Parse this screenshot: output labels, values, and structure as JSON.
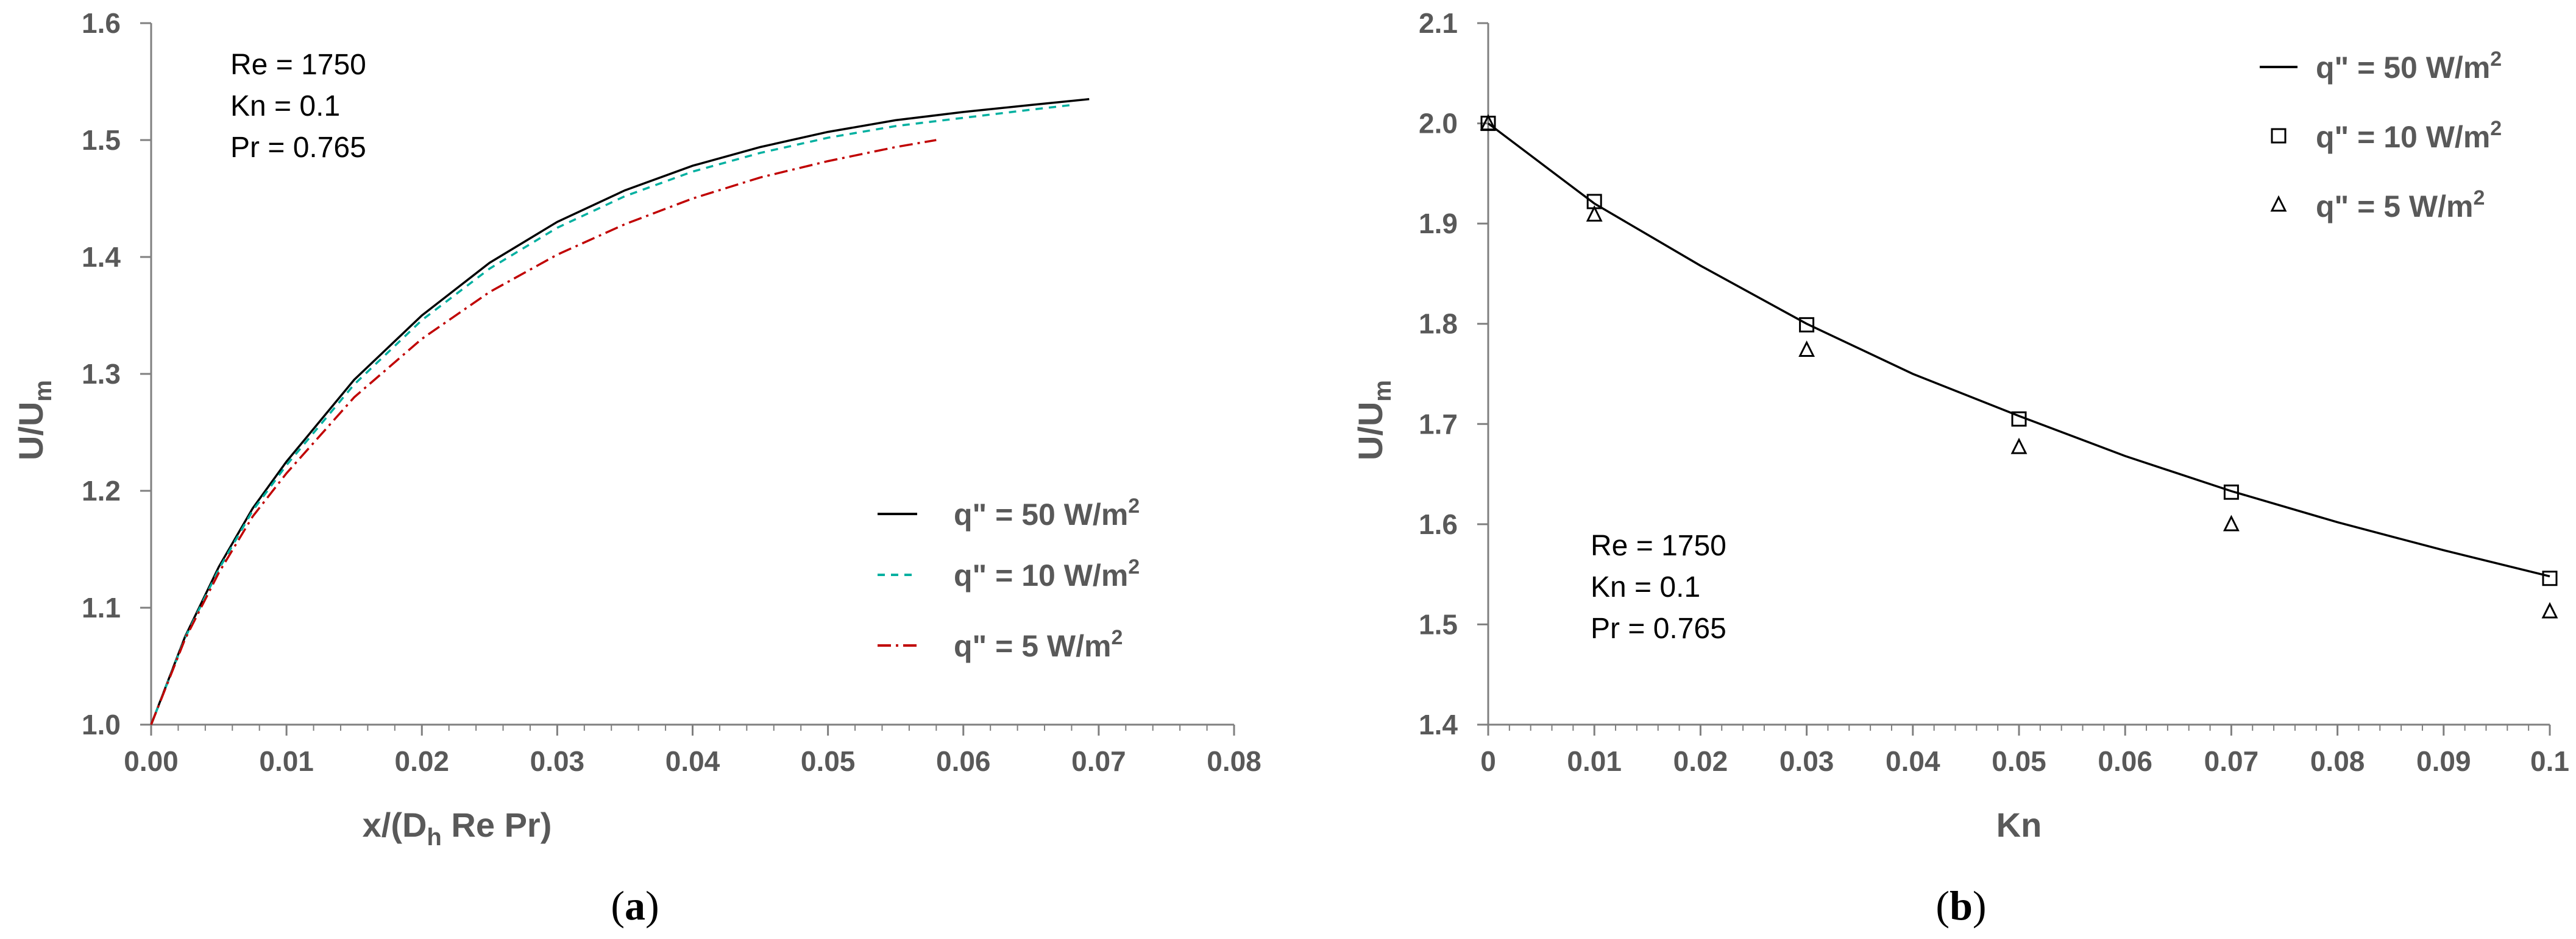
{
  "chart_data": [
    {
      "type": "line",
      "panel_label": "a",
      "xlabel": {
        "main": "x/(D",
        "sub": "h",
        "rest": " Re Pr)"
      },
      "ylabel": {
        "main": "U/U",
        "sub": "m"
      },
      "xlim": [
        0,
        0.08
      ],
      "ylim": [
        1.0,
        1.6
      ],
      "xticks": [
        0,
        0.01,
        0.02,
        0.03,
        0.04,
        0.05,
        0.06,
        0.07,
        0.08
      ],
      "xtick_labels": [
        "0.00",
        "0.01",
        "0.02",
        "0.03",
        "0.04",
        "0.05",
        "0.06",
        "0.07",
        "0.08"
      ],
      "yticks": [
        1.0,
        1.1,
        1.2,
        1.3,
        1.4,
        1.5,
        1.6
      ],
      "ytick_labels": [
        "1.0",
        "1.1",
        "1.2",
        "1.3",
        "1.4",
        "1.5",
        "1.6"
      ],
      "legend_position": "lower-right",
      "annotations": [
        "Re = 1750",
        "Kn = 0.1",
        "Pr = 0.765"
      ],
      "series": [
        {
          "name": "q\" = 50 W/m",
          "sup": "2",
          "color": "#000000",
          "dash": "",
          "x": [
            0,
            0.0025,
            0.005,
            0.0075,
            0.01,
            0.015,
            0.02,
            0.025,
            0.03,
            0.035,
            0.04,
            0.045,
            0.05,
            0.055,
            0.06,
            0.065,
            0.0693
          ],
          "y": [
            1.0,
            1.075,
            1.135,
            1.185,
            1.225,
            1.295,
            1.35,
            1.395,
            1.43,
            1.457,
            1.478,
            1.494,
            1.507,
            1.517,
            1.524,
            1.53,
            1.535
          ]
        },
        {
          "name": "q\" = 10 W/m",
          "sup": "2",
          "color": "#00b0a0",
          "dash": "12,10",
          "x": [
            0,
            0.0025,
            0.005,
            0.0075,
            0.01,
            0.015,
            0.02,
            0.025,
            0.03,
            0.035,
            0.04,
            0.045,
            0.05,
            0.055,
            0.06,
            0.065,
            0.068
          ],
          "y": [
            1.0,
            1.074,
            1.133,
            1.183,
            1.222,
            1.291,
            1.346,
            1.39,
            1.425,
            1.452,
            1.473,
            1.489,
            1.502,
            1.512,
            1.519,
            1.526,
            1.53
          ]
        },
        {
          "name": "q\" = 5 W/m",
          "sup": "2",
          "color": "#c00000",
          "dash": "22,8,4,8",
          "x": [
            0,
            0.0025,
            0.005,
            0.0075,
            0.01,
            0.015,
            0.02,
            0.025,
            0.03,
            0.035,
            0.04,
            0.045,
            0.05,
            0.055,
            0.058
          ],
          "y": [
            1.0,
            1.073,
            1.13,
            1.178,
            1.215,
            1.28,
            1.33,
            1.37,
            1.402,
            1.428,
            1.45,
            1.468,
            1.482,
            1.494,
            1.5
          ]
        }
      ]
    },
    {
      "type": "line",
      "panel_label": "b",
      "xlabel": {
        "main": "Kn",
        "sub": "",
        "rest": ""
      },
      "ylabel": {
        "main": "U/U",
        "sub": "m"
      },
      "xlim": [
        0,
        0.1
      ],
      "ylim": [
        1.4,
        2.1
      ],
      "xticks": [
        0,
        0.01,
        0.02,
        0.03,
        0.04,
        0.05,
        0.06,
        0.07,
        0.08,
        0.09,
        0.1
      ],
      "xtick_labels": [
        "0",
        "0.01",
        "0.02",
        "0.03",
        "0.04",
        "0.05",
        "0.06",
        "0.07",
        "0.08",
        "0.09",
        "0.1"
      ],
      "yticks": [
        1.4,
        1.5,
        1.6,
        1.7,
        1.8,
        1.9,
        2.0,
        2.1
      ],
      "ytick_labels": [
        "1.4",
        "1.5",
        "1.6",
        "1.7",
        "1.8",
        "1.9",
        "2.0",
        "2.1"
      ],
      "legend_position": "top-right",
      "annotations": [
        "Re = 1750",
        "Kn = 0.1",
        "Pr = 0.765"
      ],
      "series": [
        {
          "name": "q\" = 50 W/m",
          "sup": "2",
          "color": "#000000",
          "marker": "line",
          "x": [
            0,
            0.01,
            0.02,
            0.03,
            0.04,
            0.05,
            0.06,
            0.07,
            0.08,
            0.09,
            0.1
          ],
          "y": [
            2.0,
            1.92,
            1.858,
            1.8,
            1.75,
            1.708,
            1.668,
            1.633,
            1.602,
            1.574,
            1.548
          ]
        },
        {
          "name": "q\" = 10 W/m",
          "sup": "2",
          "color": "#000000",
          "marker": "square",
          "x": [
            0,
            0.01,
            0.03,
            0.05,
            0.07,
            0.1
          ],
          "y": [
            2.0,
            1.922,
            1.799,
            1.705,
            1.632,
            1.546
          ]
        },
        {
          "name": "q\" = 5 W/m",
          "sup": "2",
          "color": "#000000",
          "marker": "triangle",
          "x": [
            0,
            0.01,
            0.03,
            0.05,
            0.07,
            0.1
          ],
          "y": [
            2.0,
            1.909,
            1.774,
            1.677,
            1.6,
            1.513
          ]
        }
      ]
    }
  ]
}
